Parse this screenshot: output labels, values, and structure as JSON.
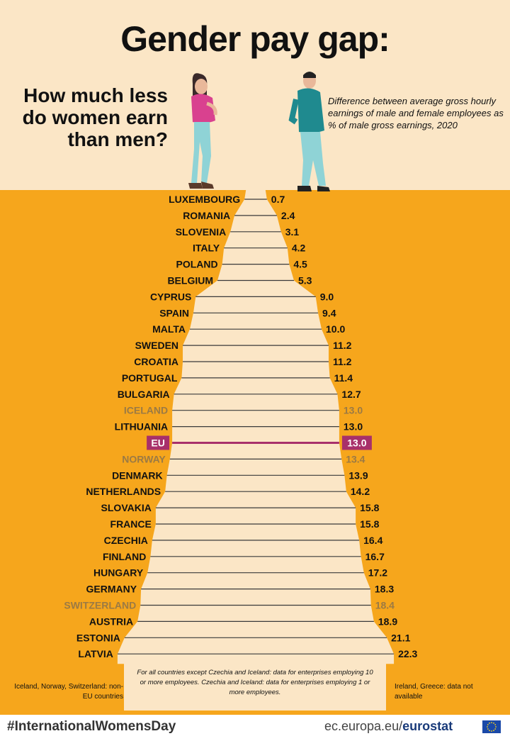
{
  "header": {
    "title": "Gender pay gap:",
    "subtitle_lines": [
      "How much less",
      "do women earn",
      "than men?"
    ],
    "description": "Difference between average gross hourly earnings of male and female employees as % of male gross earnings, 2020"
  },
  "chart_data": {
    "type": "bar",
    "orientation": "horizontal",
    "categories": [
      "LUXEMBOURG",
      "ROMANIA",
      "SLOVENIA",
      "ITALY",
      "POLAND",
      "BELGIUM",
      "CYPRUS",
      "SPAIN",
      "MALTA",
      "SWEDEN",
      "CROATIA",
      "PORTUGAL",
      "BULGARIA",
      "ICELAND",
      "LITHUANIA",
      "EU",
      "NORWAY",
      "DENMARK",
      "NETHERLANDS",
      "SLOVAKIA",
      "FRANCE",
      "CZECHIA",
      "FINLAND",
      "HUNGARY",
      "GERMANY",
      "SWITZERLAND",
      "AUSTRIA",
      "ESTONIA",
      "LATVIA"
    ],
    "values": [
      0.7,
      2.4,
      3.1,
      4.2,
      4.5,
      5.3,
      9.0,
      9.4,
      10.0,
      11.2,
      11.2,
      11.4,
      12.7,
      13.0,
      13.0,
      13.0,
      13.4,
      13.9,
      14.2,
      15.8,
      15.8,
      16.4,
      16.7,
      17.2,
      18.3,
      18.4,
      18.9,
      21.1,
      22.3
    ],
    "value_labels": [
      "0.7",
      "2.4",
      "3.1",
      "4.2",
      "4.5",
      "5.3",
      "9.0",
      "9.4",
      "10.0",
      "11.2",
      "11.2",
      "11.4",
      "12.7",
      "13.0",
      "13.0",
      "13.0",
      "13.4",
      "13.9",
      "14.2",
      "15.8",
      "15.8",
      "16.4",
      "16.7",
      "17.2",
      "18.3",
      "18.4",
      "18.9",
      "21.1",
      "22.3"
    ],
    "non_eu": [
      "ICELAND",
      "NORWAY",
      "SWITZERLAND"
    ],
    "highlight": "EU",
    "unit": "%",
    "colors": {
      "background_top": "#fbe6c6",
      "background_bottom": "#f6a61c",
      "bar_fill": "#fbe6c6",
      "line": "#3a3a3a",
      "eu_highlight": "#a8306a",
      "non_eu_text": "#9b7a44",
      "label_text": "#111111"
    }
  },
  "notes": {
    "methodology": "For all countries except Czechia and Iceland: data for enterprises employing 10 or more employees. Czechia and Iceland: data for enterprises employing 1 or more employees.",
    "left": "Iceland, Norway, Switzerland: non-EU countries",
    "right": "Ireland, Greece: data not available"
  },
  "footer": {
    "hashtag": "#InternationalWomensDay",
    "site_prefix": "ec.europa.eu/",
    "site_brand": "eurostat"
  },
  "icons": [
    "woman-figure-icon",
    "man-figure-icon",
    "eu-flag-icon"
  ]
}
